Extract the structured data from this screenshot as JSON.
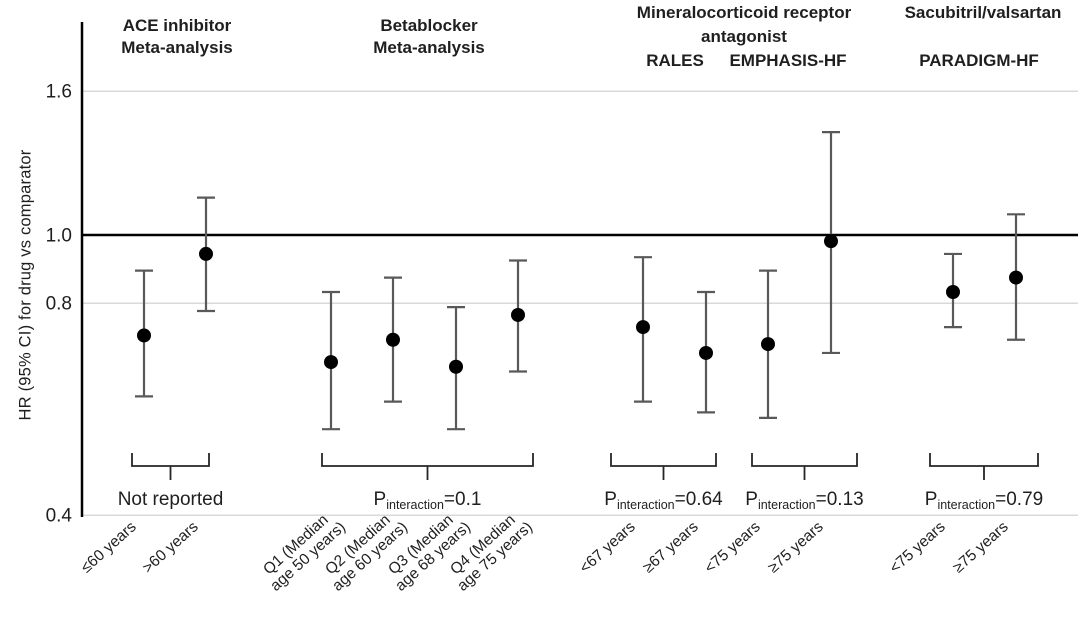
{
  "chart_data": {
    "type": "scatter",
    "subtype": "forest-plot-with-error-bars",
    "title": "",
    "xlabel": "",
    "ylabel": "HR (95% CI) for drug vs comparator",
    "yscale": "log",
    "yticks": [
      1.6,
      1.0,
      0.8,
      0.4
    ],
    "ytick_labels": [
      "1.6",
      "1.0",
      "0.8",
      "0.4"
    ],
    "ylim": [
      0.4,
      2.0
    ],
    "reference_line": 1.0,
    "grid": "horizontal-gridlines-at-ticks",
    "legend": "none",
    "column_headers": [
      {
        "lines": [
          "ACE inhibitor",
          "Meta-analysis"
        ],
        "trial_labels": []
      },
      {
        "lines": [
          "Betablocker",
          "Meta-analysis"
        ],
        "trial_labels": []
      },
      {
        "lines": [
          "Mineralocorticoid receptor",
          "antagonist"
        ],
        "trial_labels": [
          "RALES",
          "EMPHASIS-HF"
        ]
      },
      {
        "lines": [
          "Sacubitril/valsartan"
        ],
        "trial_labels": [
          "PARADIGM-HF"
        ]
      }
    ],
    "groups": [
      {
        "annotation": {
          "text": "Not reported"
        },
        "points": [
          {
            "label": "≤60 years",
            "hr": 0.72,
            "ci_low": 0.59,
            "ci_high": 0.89
          },
          {
            "label": ">60 years",
            "hr": 0.94,
            "ci_low": 0.78,
            "ci_high": 1.13
          }
        ]
      },
      {
        "annotation": {
          "p_base": "P",
          "p_sub": "interaction",
          "p_rest": "=0.1"
        },
        "points": [
          {
            "label": [
              "Q1 (Median",
              "age 50 years)"
            ],
            "hr": 0.66,
            "ci_low": 0.53,
            "ci_high": 0.83
          },
          {
            "label": [
              "Q2 (Median",
              "age 60 years)"
            ],
            "hr": 0.71,
            "ci_low": 0.58,
            "ci_high": 0.87
          },
          {
            "label": [
              "Q3 (Median",
              "age 68 years)"
            ],
            "hr": 0.65,
            "ci_low": 0.53,
            "ci_high": 0.79
          },
          {
            "label": [
              "Q4 (Median",
              "age 75 years)"
            ],
            "hr": 0.77,
            "ci_low": 0.64,
            "ci_high": 0.92
          }
        ]
      },
      {
        "annotation": {
          "p_base": "P",
          "p_sub": "interaction",
          "p_rest": "=0.64"
        },
        "points": [
          {
            "label": "<67 years",
            "hr": 0.74,
            "ci_low": 0.58,
            "ci_high": 0.93
          },
          {
            "label": "≥67 years",
            "hr": 0.68,
            "ci_low": 0.56,
            "ci_high": 0.83
          }
        ]
      },
      {
        "annotation": {
          "p_base": "P",
          "p_sub": "interaction",
          "p_rest": "=0.13"
        },
        "points": [
          {
            "label": "<75 years",
            "hr": 0.7,
            "ci_low": 0.55,
            "ci_high": 0.89
          },
          {
            "label": "≥75 years",
            "hr": 0.98,
            "ci_low": 0.68,
            "ci_high": 1.4
          }
        ]
      },
      {
        "annotation": {
          "p_base": "P",
          "p_sub": "interaction",
          "p_rest": "=0.79"
        },
        "points": [
          {
            "label": "<75 years",
            "hr": 0.83,
            "ci_low": 0.74,
            "ci_high": 0.94
          },
          {
            "label": "≥75 years",
            "hr": 0.87,
            "ci_low": 0.71,
            "ci_high": 1.07
          }
        ]
      }
    ],
    "colors": {
      "point": "#000000",
      "error_bar": "#595959",
      "gridline": "#d9d9d9",
      "reference_line": "#000000",
      "axis_line": "#000000",
      "bracket": "#262626",
      "text": "#1f1f1f",
      "background": "#ffffff"
    }
  }
}
